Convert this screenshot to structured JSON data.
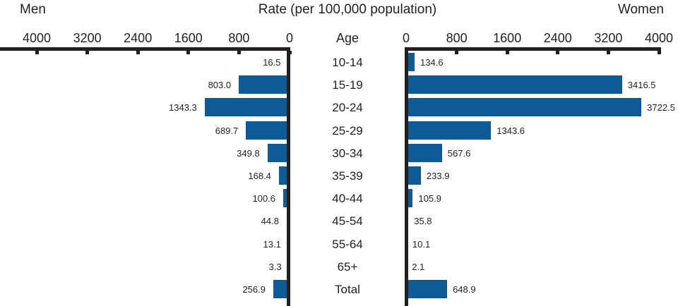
{
  "header": {
    "left": "Men",
    "title": "Rate (per 100,000 population)",
    "right": "Women"
  },
  "age_column_header": "Age",
  "axis": {
    "men_tick_labels": [
      "4000",
      "3200",
      "2400",
      "1600",
      "800",
      "0"
    ],
    "women_tick_labels": [
      "0",
      "800",
      "1600",
      "2400",
      "3200",
      "4000"
    ]
  },
  "colors": {
    "bar_blue": "#0E5A96",
    "axis_black": "#231F20"
  },
  "chart_data": {
    "type": "bar",
    "subtype": "bidirectional-population-pyramid",
    "title": "Rate (per 100,000 population)",
    "categories": [
      "10-14",
      "15-19",
      "20-24",
      "25-29",
      "30-34",
      "35-39",
      "40-44",
      "45-54",
      "55-64",
      "65+",
      "Total"
    ],
    "series": [
      {
        "name": "Men",
        "direction": "left",
        "values": [
          16.5,
          803.0,
          1343.3,
          689.7,
          349.8,
          168.4,
          100.6,
          44.8,
          13.1,
          3.3,
          256.9
        ]
      },
      {
        "name": "Women",
        "direction": "right",
        "values": [
          134.6,
          3416.5,
          3722.5,
          1343.6,
          567.6,
          233.9,
          105.9,
          35.8,
          10.1,
          2.1,
          648.9
        ]
      }
    ],
    "xlim": [
      0,
      4000
    ],
    "tick_interval": 800,
    "value_labels": "outside-end-one-decimal",
    "legend_position": "none",
    "grid": false
  }
}
